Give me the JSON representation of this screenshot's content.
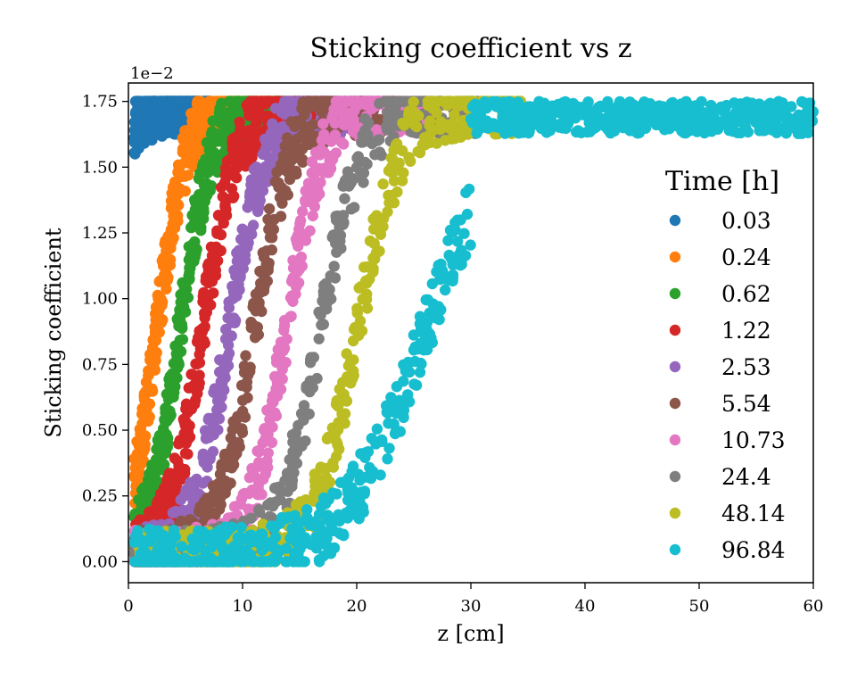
{
  "chart_data": {
    "type": "scatter",
    "title": "Sticking coefficient vs z",
    "xlabel": "z [cm]",
    "ylabel": "Sticking coefficient",
    "xlim": [
      0,
      60
    ],
    "ylim": [
      -0.0008,
      0.0182
    ],
    "x_ticks": [
      0,
      10,
      20,
      30,
      40,
      50,
      60
    ],
    "x_tick_labels": [
      "0",
      "10",
      "20",
      "30",
      "40",
      "50",
      "60"
    ],
    "y_ticks": [
      0.0,
      0.0025,
      0.005,
      0.0075,
      0.01,
      0.0125,
      0.015,
      0.0175
    ],
    "y_tick_labels": [
      "0.00",
      "0.25",
      "0.50",
      "0.75",
      "1.00",
      "1.25",
      "1.50",
      "1.75"
    ],
    "y_offset_label": "1e−2",
    "legend_title": "Time [h]",
    "legend_position": "right",
    "series": [
      {
        "name": "0.03",
        "color": "#1f77b4",
        "center_z": -3.0,
        "width_z": 1.2
      },
      {
        "name": "0.24",
        "color": "#ff7f0e",
        "center_z": 2.5,
        "width_z": 1.3
      },
      {
        "name": "0.62",
        "color": "#2ca02c",
        "center_z": 4.5,
        "width_z": 1.4
      },
      {
        "name": "1.22",
        "color": "#d62728",
        "center_z": 6.5,
        "width_z": 1.5
      },
      {
        "name": "2.53",
        "color": "#9467bd",
        "center_z": 8.8,
        "width_z": 1.6
      },
      {
        "name": "5.54",
        "color": "#8c564b",
        "center_z": 11.0,
        "width_z": 1.6
      },
      {
        "name": "10.73",
        "color": "#e377c2",
        "center_z": 13.8,
        "width_z": 1.6
      },
      {
        "name": "24.4",
        "color": "#7f7f7f",
        "center_z": 16.8,
        "width_z": 1.8
      },
      {
        "name": "48.14",
        "color": "#bcbd22",
        "center_z": 20.0,
        "width_z": 1.9
      },
      {
        "name": "96.84",
        "color": "#17becf",
        "center_z": 26.0,
        "width_z": 3.5
      }
    ]
  }
}
